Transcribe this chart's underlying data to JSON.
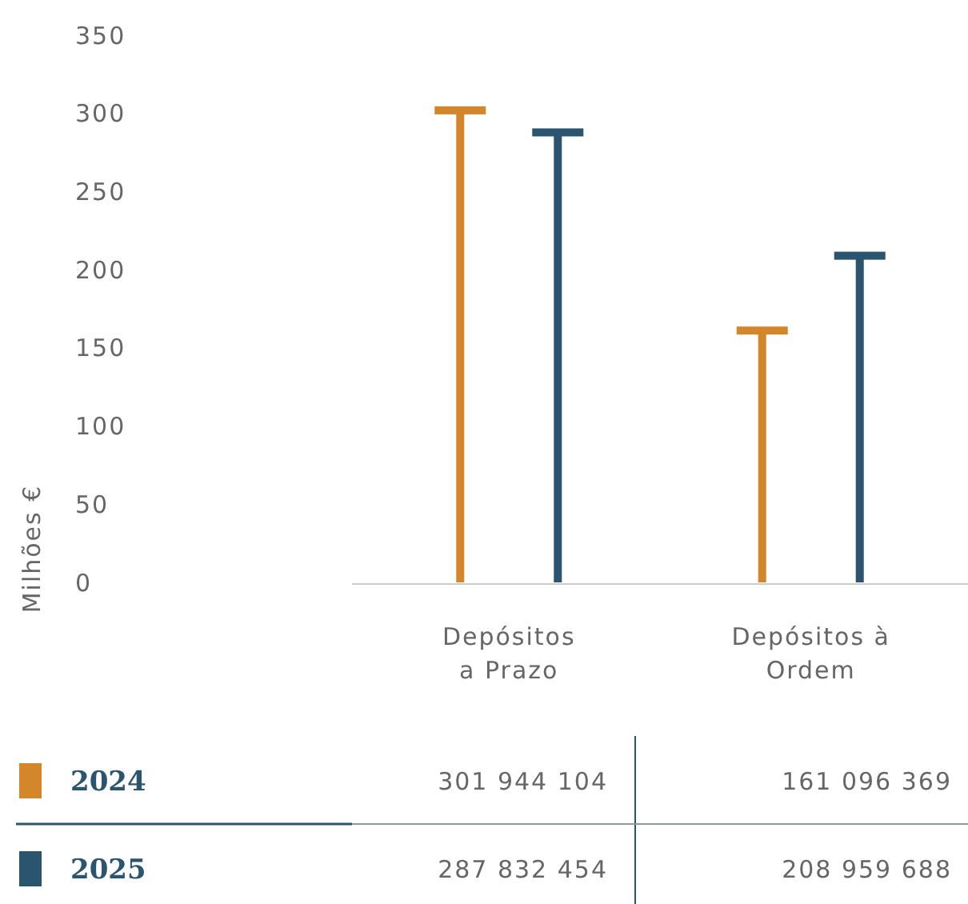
{
  "chart_data": {
    "type": "bar",
    "ylabel": "Milhões €",
    "categories": [
      "Depósitos\na Prazo",
      "Depósitos à\nOrdem"
    ],
    "series": [
      {
        "name": "2024",
        "color": "#d4862a",
        "values": [
          301.944104,
          161.096369
        ]
      },
      {
        "name": "2025",
        "color": "#2b546e",
        "values": [
          287.832454,
          208.959688
        ]
      }
    ],
    "annotations": [
      "301 944 104",
      "161 096 369",
      "287 832 454",
      "208 959 688"
    ],
    "ylim": [
      0,
      350
    ],
    "yticks": [
      0,
      50,
      100,
      150,
      200,
      250,
      300,
      350
    ],
    "legend": "bottom",
    "grid": false
  }
}
